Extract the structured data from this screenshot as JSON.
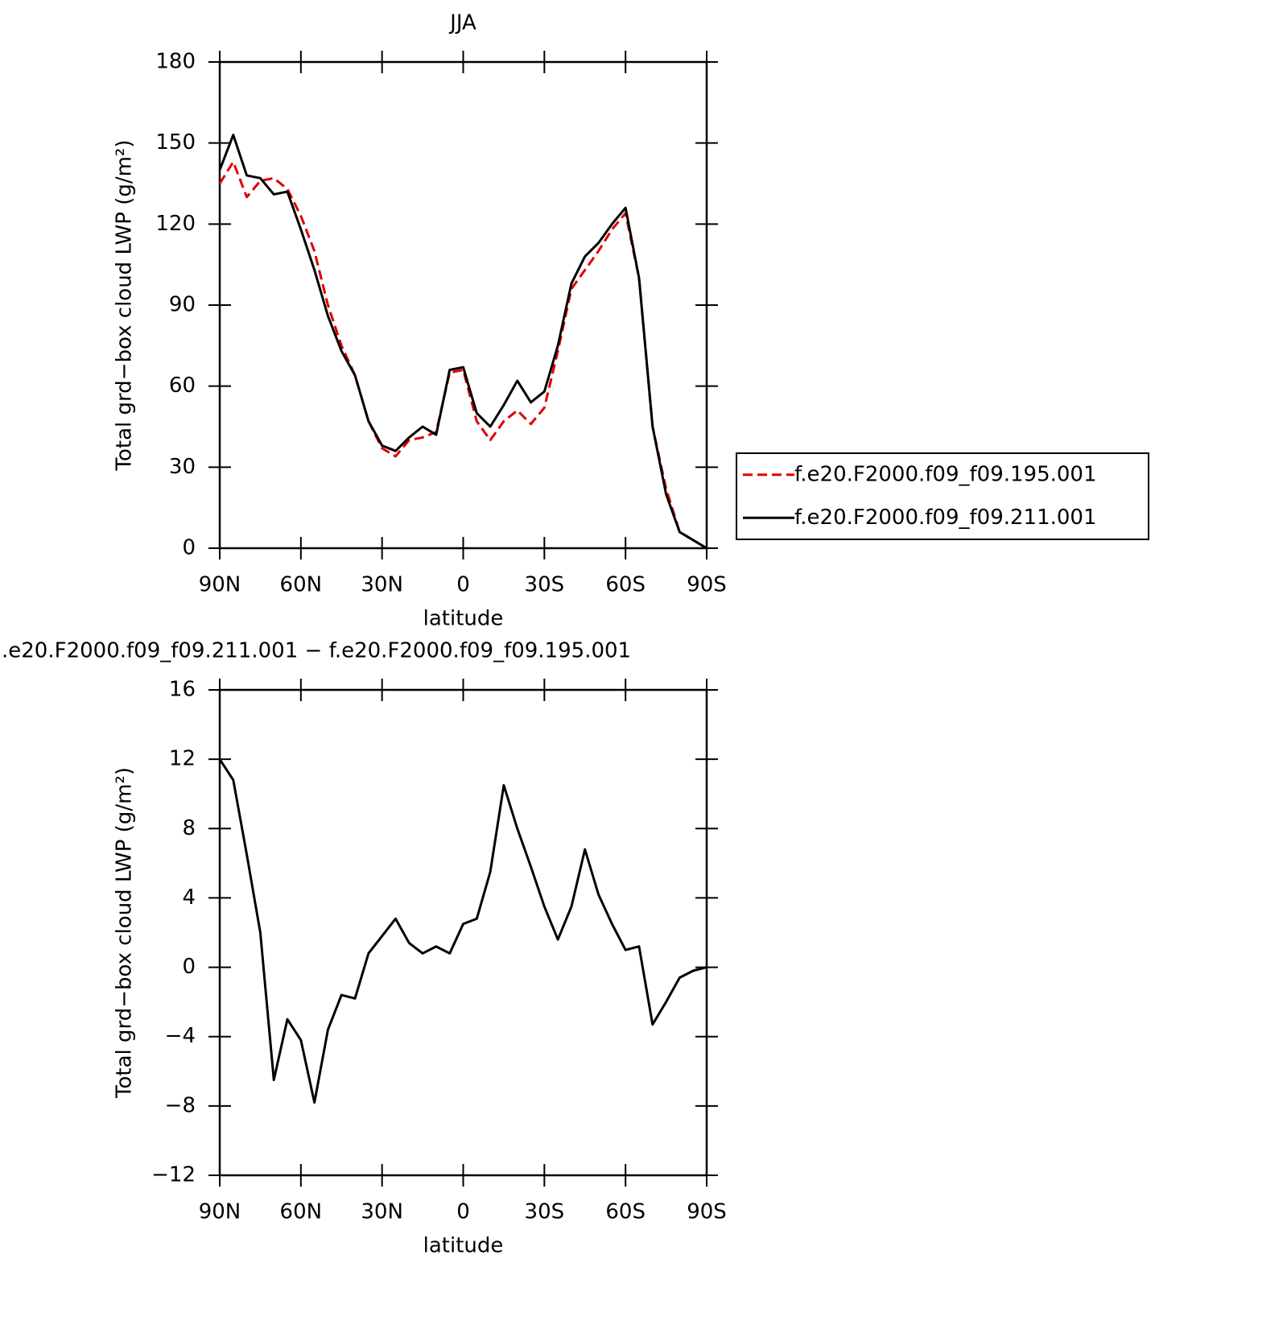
{
  "chart_data": [
    {
      "type": "line",
      "title": "JJA",
      "xlabel": "latitude",
      "ylabel": "Total grd−box cloud LWP (g/m²)",
      "x": [
        90,
        85,
        80,
        75,
        70,
        65,
        60,
        55,
        50,
        45,
        40,
        35,
        30,
        25,
        20,
        15,
        10,
        5,
        0,
        -5,
        -10,
        -15,
        -20,
        -25,
        -30,
        -35,
        -40,
        -45,
        -50,
        -55,
        -60,
        -65,
        -70,
        -75,
        -80,
        -85,
        -90
      ],
      "series": [
        {
          "name": "f.e20.F2000.f09_f09.195.001",
          "color": "#e00000",
          "dash": "dashed",
          "values": [
            135,
            143,
            130,
            136,
            137,
            133,
            123,
            110,
            90,
            75,
            64,
            47,
            37,
            34,
            40,
            41,
            43,
            65,
            66,
            47,
            40,
            47,
            51,
            46,
            52,
            73,
            96,
            103,
            110,
            118,
            124,
            100,
            45,
            22,
            6,
            3,
            0
          ]
        },
        {
          "name": "f.e20.F2000.f09_f09.211.001",
          "color": "#000000",
          "dash": "solid",
          "values": [
            140,
            153,
            138,
            137,
            131,
            132,
            118,
            103,
            86,
            73,
            64,
            47,
            38,
            36,
            41,
            45,
            42,
            66,
            67,
            50,
            45,
            53,
            62,
            54,
            58,
            75,
            98,
            108,
            113,
            120,
            126,
            100,
            45,
            20,
            6,
            3,
            0
          ]
        }
      ],
      "xlim": [
        90,
        -90
      ],
      "xticks": [
        {
          "value": 90,
          "label": "90N"
        },
        {
          "value": 60,
          "label": "60N"
        },
        {
          "value": 30,
          "label": "30N"
        },
        0,
        {
          "value": -30,
          "label": "30S"
        },
        {
          "value": -60,
          "label": "60S"
        },
        {
          "value": -90,
          "label": "90S"
        }
      ],
      "ylim": [
        0,
        180
      ],
      "yticks": [
        0,
        30,
        60,
        90,
        120,
        150,
        180
      ],
      "legend": "right"
    },
    {
      "type": "line",
      "title": ".e20.F2000.f09_f09.211.001 − f.e20.F2000.f09_f09.195.001",
      "xlabel": "latitude",
      "ylabel": "Total grd−box cloud LWP (g/m²)",
      "x": [
        90,
        85,
        80,
        75,
        70,
        65,
        60,
        55,
        50,
        45,
        40,
        35,
        30,
        25,
        20,
        15,
        10,
        5,
        0,
        -5,
        -10,
        -15,
        -20,
        -25,
        -30,
        -35,
        -40,
        -45,
        -50,
        -55,
        -60,
        -65,
        -70,
        -75,
        -80,
        -85,
        -90
      ],
      "series": [
        {
          "color": "#000000",
          "dash": "solid",
          "values": [
            12,
            10.8,
            6.5,
            2,
            -6.5,
            -3,
            -4.2,
            -7.8,
            -3.6,
            -1.6,
            -1.8,
            0.8,
            1.8,
            2.8,
            1.4,
            0.8,
            1.2,
            0.8,
            2.5,
            2.8,
            5.5,
            10.5,
            8,
            5.8,
            3.5,
            1.6,
            3.5,
            6.8,
            4.2,
            2.5,
            1,
            1.2,
            -3.3,
            -2,
            -0.6,
            -0.2,
            0
          ]
        }
      ],
      "xlim": [
        90,
        -90
      ],
      "xticks": [
        {
          "value": 90,
          "label": "90N"
        },
        {
          "value": 60,
          "label": "60N"
        },
        {
          "value": 30,
          "label": "30N"
        },
        0,
        {
          "value": -30,
          "label": "30S"
        },
        {
          "value": -60,
          "label": "60S"
        },
        {
          "value": -90,
          "label": "90S"
        }
      ],
      "ylim": [
        -12,
        16
      ],
      "yticks": [
        {
          "value": -12,
          "label": "−12"
        },
        {
          "value": -8,
          "label": "−8"
        },
        {
          "value": -4,
          "label": "−4"
        },
        0,
        4,
        8,
        12,
        16
      ]
    }
  ]
}
